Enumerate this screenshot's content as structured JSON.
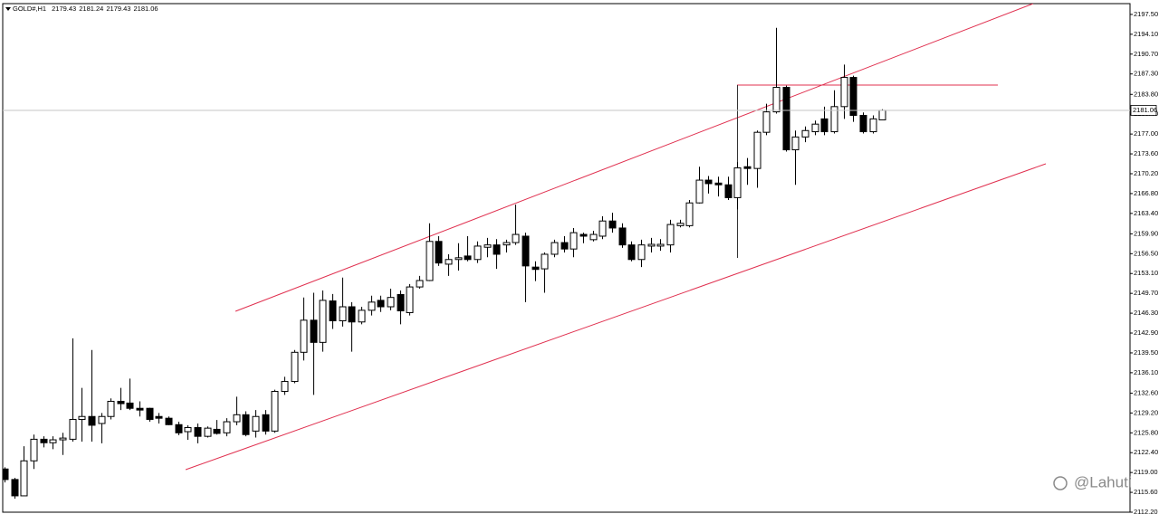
{
  "chart_data": {
    "type": "candlestick",
    "title": "GOLD#,H1",
    "watermark": "@Lahuti",
    "up_color": "#ffffff",
    "down_color": "#000000",
    "wick_color": "#000000",
    "open": [
      2119.6,
      2117.8,
      2115.0,
      2121.0,
      2124.7,
      2124.1,
      2124.6,
      2124.7,
      2128.1,
      2128.6,
      2127.4,
      2128.6,
      2131.2,
      2130.9,
      2130.0,
      2130.0,
      2128.6,
      2128.3,
      2127.2,
      2126.0,
      2126.7,
      2125.2,
      2126.4,
      2125.8,
      2127.7,
      2128.9,
      2126.1,
      2128.9,
      2126.1,
      2132.9,
      2134.6,
      2139.6,
      2145.1,
      2141.3,
      2148.4,
      2145.0,
      2147.4,
      2144.8,
      2146.8,
      2148.5,
      2147.4,
      2149.5,
      2146.4,
      2150.8,
      2151.9,
      2158.6,
      2154.7,
      2155.5,
      2156.1,
      2155.5,
      2157.6,
      2158.0,
      2158.0,
      2158.4,
      2159.5,
      2154.2,
      2153.9,
      2156.4,
      2158.4,
      2157.3,
      2159.8,
      2158.9,
      2159.5,
      2162.1,
      2160.9,
      2158.0,
      2155.5,
      2157.8,
      2157.8,
      2158.0,
      2161.3,
      2161.3,
      2165.2,
      2169.1,
      2168.6,
      2168.3,
      2166.1,
      2171.4,
      2171.1,
      2177.3,
      2180.8,
      2185.0,
      2174.3,
      2176.5,
      2177.4,
      2179.6,
      2177.4,
      2181.7,
      2186.7,
      2180.2,
      2177.4,
      2179.43
    ],
    "high": [
      2119.9,
      2118.1,
      2123.5,
      2125.5,
      2125.2,
      2125.2,
      2125.8,
      2142.0,
      2133.5,
      2140.0,
      2129.2,
      2131.7,
      2133.5,
      2135.1,
      2131.2,
      2130.1,
      2129.2,
      2128.6,
      2127.7,
      2127.1,
      2127.4,
      2126.9,
      2128.0,
      2128.3,
      2132.0,
      2129.5,
      2129.7,
      2129.7,
      2133.2,
      2135.4,
      2140.0,
      2149.0,
      2149.8,
      2150.2,
      2149.6,
      2152.4,
      2148.2,
      2147.4,
      2149.3,
      2149.3,
      2150.5,
      2150.2,
      2151.3,
      2152.7,
      2161.7,
      2159.5,
      2156.4,
      2158.3,
      2159.5,
      2158.6,
      2159.2,
      2159.0,
      2158.9,
      2164.9,
      2160.1,
      2155.2,
      2156.7,
      2158.9,
      2159.5,
      2160.9,
      2160.1,
      2160.4,
      2162.9,
      2163.5,
      2161.7,
      2158.6,
      2158.9,
      2159.2,
      2159.0,
      2162.3,
      2162.3,
      2165.7,
      2171.4,
      2169.8,
      2169.7,
      2169.7,
      2172.2,
      2172.9,
      2177.6,
      2182.2,
      2195.2,
      2185.3,
      2177.6,
      2178.3,
      2179.3,
      2181.7,
      2184.5,
      2188.9,
      2187.0,
      2180.7,
      2180.2,
      2181.24
    ],
    "low": [
      2117.3,
      2114.5,
      2115.0,
      2119.6,
      2123.3,
      2123.0,
      2122.0,
      2124.3,
      2124.3,
      2124.3,
      2124.0,
      2128.1,
      2129.7,
      2129.7,
      2128.6,
      2127.7,
      2127.4,
      2127.1,
      2125.4,
      2124.6,
      2124.0,
      2125.0,
      2125.5,
      2125.2,
      2127.1,
      2125.2,
      2125.0,
      2125.5,
      2125.8,
      2132.3,
      2134.3,
      2138.2,
      2132.3,
      2139.7,
      2143.6,
      2144.0,
      2139.7,
      2144.4,
      2145.9,
      2146.5,
      2146.8,
      2144.4,
      2145.9,
      2150.5,
      2151.8,
      2154.4,
      2152.7,
      2153.6,
      2155.2,
      2154.9,
      2155.9,
      2153.9,
      2156.7,
      2158.0,
      2148.2,
      2151.8,
      2149.8,
      2155.9,
      2156.7,
      2155.9,
      2158.3,
      2158.6,
      2159.0,
      2160.1,
      2157.5,
      2155.2,
      2154.2,
      2156.7,
      2157.0,
      2156.7,
      2161.0,
      2161.0,
      2165.1,
      2166.8,
      2166.3,
      2165.7,
      2164.1,
      2168.3,
      2167.8,
      2176.8,
      2180.5,
      2174.0,
      2168.3,
      2175.6,
      2176.8,
      2176.8,
      2177.1,
      2179.6,
      2179.1,
      2177.1,
      2177.1,
      2179.43
    ],
    "close": [
      2117.8,
      2115.0,
      2121.0,
      2124.7,
      2124.1,
      2124.6,
      2124.9,
      2128.1,
      2128.6,
      2127.1,
      2128.6,
      2131.2,
      2130.8,
      2130.0,
      2129.7,
      2128.1,
      2128.3,
      2127.2,
      2125.8,
      2126.7,
      2125.2,
      2126.6,
      2125.7,
      2127.7,
      2128.9,
      2125.5,
      2128.6,
      2126.1,
      2132.9,
      2134.6,
      2139.6,
      2145.1,
      2141.3,
      2148.5,
      2145.0,
      2147.4,
      2144.8,
      2146.8,
      2148.2,
      2147.4,
      2149.0,
      2146.7,
      2150.8,
      2151.9,
      2158.6,
      2154.9,
      2155.5,
      2155.8,
      2155.5,
      2157.8,
      2158.0,
      2156.4,
      2158.4,
      2159.8,
      2154.4,
      2153.8,
      2156.4,
      2158.4,
      2157.3,
      2160.1,
      2159.5,
      2159.8,
      2162.1,
      2160.9,
      2158.0,
      2155.5,
      2158.0,
      2158.1,
      2158.1,
      2161.5,
      2161.7,
      2165.2,
      2169.1,
      2168.5,
      2168.3,
      2166.1,
      2171.2,
      2171.1,
      2177.3,
      2180.8,
      2185.0,
      2174.3,
      2176.5,
      2177.6,
      2178.7,
      2177.4,
      2181.7,
      2186.7,
      2180.2,
      2177.4,
      2179.6,
      2181.06
    ],
    "ylim": [
      2112.2,
      2199.35
    ],
    "yticks": [
      {
        "value": 2197.5,
        "label": "2197.50"
      },
      {
        "value": 2194.1,
        "label": "2194.10"
      },
      {
        "value": 2190.7,
        "label": "2190.70"
      },
      {
        "value": 2187.3,
        "label": "2187.30"
      },
      {
        "value": 2183.8,
        "label": "2183.80"
      },
      {
        "value": 2180.4,
        "label": "2180.40"
      },
      {
        "value": 2177,
        "label": "2177.00"
      },
      {
        "value": 2173.6,
        "label": "2173.60"
      },
      {
        "value": 2170.2,
        "label": "2170.20"
      },
      {
        "value": 2166.8,
        "label": "2166.80"
      },
      {
        "value": 2163.4,
        "label": "2163.40"
      },
      {
        "value": 2159.9,
        "label": "2159.90"
      },
      {
        "value": 2156.5,
        "label": "2156.50"
      },
      {
        "value": 2153.1,
        "label": "2153.10"
      },
      {
        "value": 2149.7,
        "label": "2149.70"
      },
      {
        "value": 2146.3,
        "label": "2146.30"
      },
      {
        "value": 2142.9,
        "label": "2142.90"
      },
      {
        "value": 2139.5,
        "label": "2139.50"
      },
      {
        "value": 2136.1,
        "label": "2136.10"
      },
      {
        "value": 2132.6,
        "label": "2132.60"
      },
      {
        "value": 2129.2,
        "label": "2129.20"
      },
      {
        "value": 2125.8,
        "label": "2125.80"
      },
      {
        "value": 2122.4,
        "label": "2122.40"
      },
      {
        "value": 2119,
        "label": "2119.00"
      },
      {
        "value": 2115.6,
        "label": "2115.60"
      },
      {
        "value": 2112.2,
        "label": "2112.20"
      }
    ],
    "grid": false
  }
}
